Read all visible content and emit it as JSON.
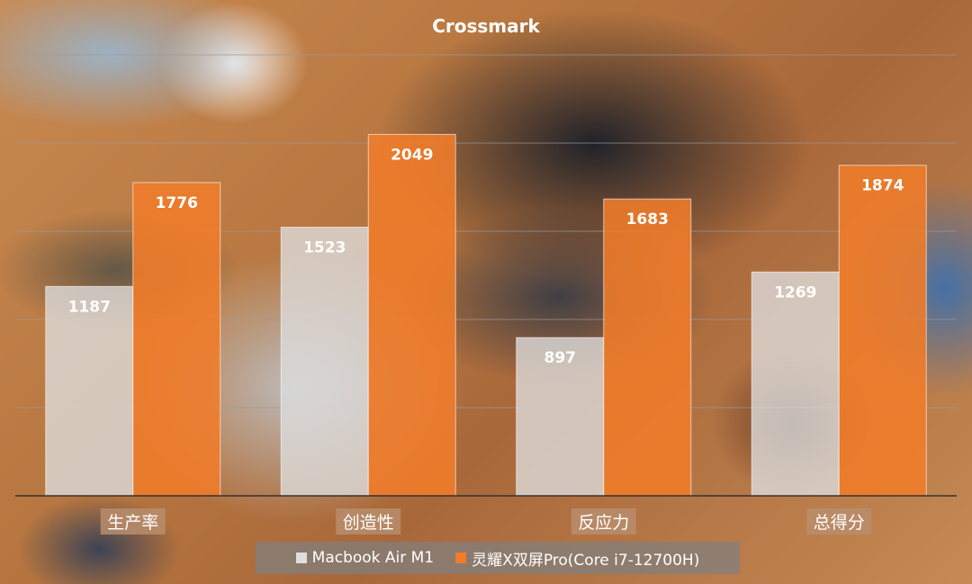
{
  "chart_data": {
    "type": "bar",
    "title": "Crossmark",
    "categories": [
      "生产率",
      "创造性",
      "反应力",
      "总得分"
    ],
    "series": [
      {
        "name": "Macbook Air M1",
        "values": [
          1187,
          1523,
          897,
          1269
        ],
        "color": "#dedede"
      },
      {
        "name": "灵耀X双屏Pro(Core i7-12700H)",
        "values": [
          1776,
          2049,
          1683,
          1874
        ],
        "color": "#f07c2a"
      }
    ],
    "ylim": [
      0,
      2500
    ],
    "grid": true,
    "legend_position": "bottom"
  }
}
